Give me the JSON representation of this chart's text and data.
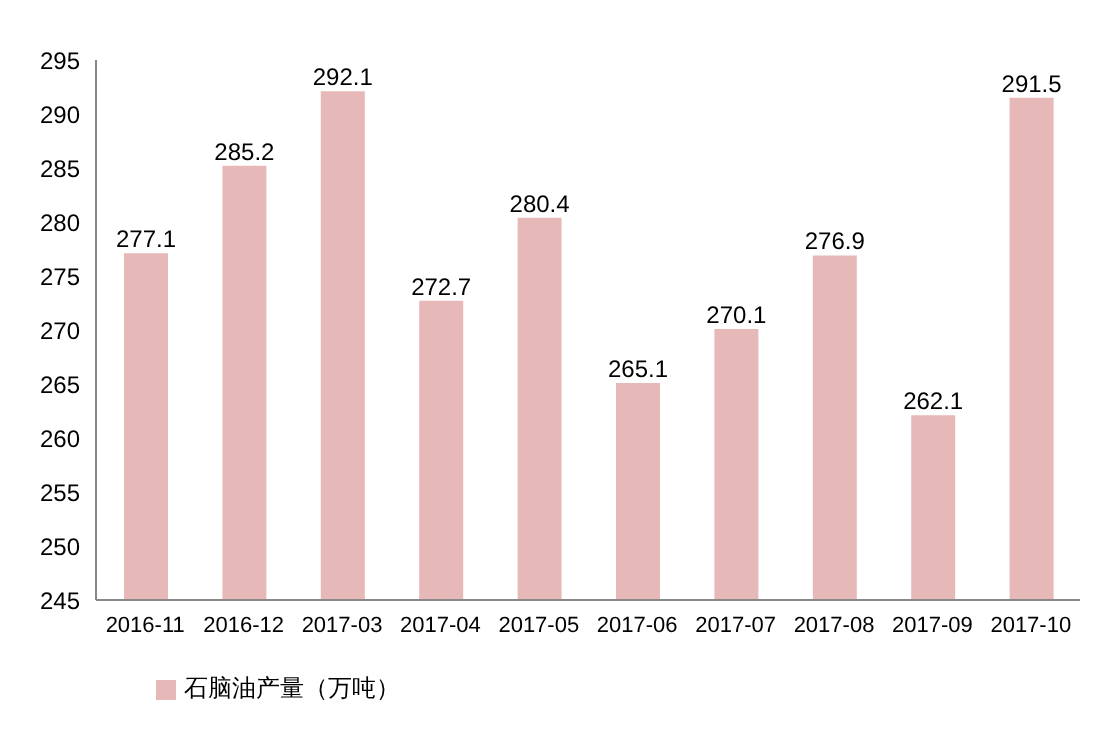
{
  "chart_data": {
    "type": "bar",
    "categories": [
      "2016-11",
      "2016-12",
      "2017-03",
      "2017-04",
      "2017-05",
      "2017-06",
      "2017-07",
      "2017-08",
      "2017-09",
      "2017-10"
    ],
    "series": [
      {
        "name": "石脑油产量（万吨）",
        "color": "#e6b9b8",
        "values": [
          277.1,
          285.2,
          292.1,
          272.7,
          280.4,
          265.1,
          270.1,
          276.9,
          262.1,
          291.5
        ]
      }
    ],
    "ylim": [
      245,
      295
    ],
    "yticks": [
      245,
      250,
      255,
      260,
      265,
      270,
      275,
      280,
      285,
      290,
      295
    ],
    "grid": false,
    "legend": "bottom",
    "data_labels": true
  }
}
